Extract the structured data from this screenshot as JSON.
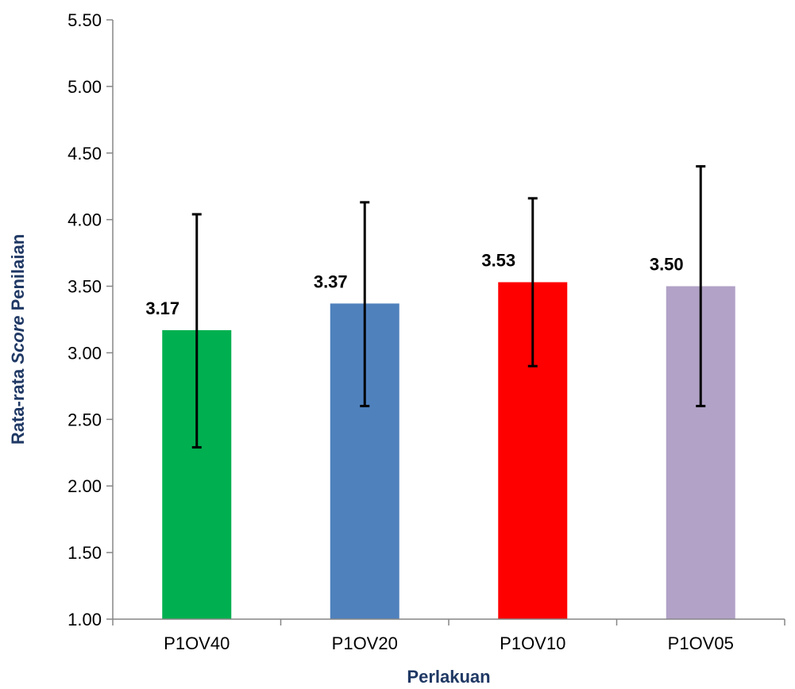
{
  "chart_data": {
    "type": "bar",
    "title": "",
    "xlabel": "Perlakuan",
    "ylabel_parts": [
      {
        "text": "Rata-rata ",
        "italic": false
      },
      {
        "text": "Score",
        "italic": true
      },
      {
        "text": " Penilaian",
        "italic": false
      }
    ],
    "ylim": [
      1.0,
      5.5
    ],
    "yticks": [
      "1.00",
      "1.50",
      "2.00",
      "2.50",
      "3.00",
      "3.50",
      "4.00",
      "4.50",
      "5.00",
      "5.50"
    ],
    "ytick_values": [
      1.0,
      1.5,
      2.0,
      2.5,
      3.0,
      3.5,
      4.0,
      4.5,
      5.0,
      5.5
    ],
    "categories": [
      "P1OV40",
      "P1OV20",
      "P1OV10",
      "P1OV05"
    ],
    "values": [
      3.17,
      3.37,
      3.53,
      3.5
    ],
    "value_labels": [
      "3.17",
      "3.37",
      "3.53",
      "3.50"
    ],
    "error_low": [
      2.29,
      2.6,
      2.9,
      2.6
    ],
    "error_high": [
      4.04,
      4.13,
      4.16,
      4.4
    ],
    "bar_colors": [
      "#00B050",
      "#4F81BD",
      "#FF0000",
      "#B2A2C7"
    ],
    "axis_title_color": "#1F3864",
    "grid": false,
    "legend": "none"
  }
}
